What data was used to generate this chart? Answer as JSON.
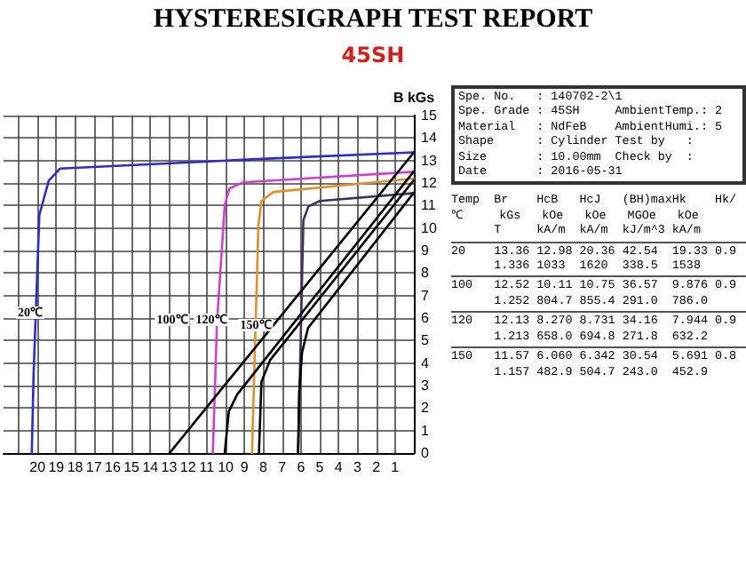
{
  "chart_data": {
    "type": "line",
    "title": "HYSTERESIGRAPH TEST REPORT",
    "subtitle": "45SH",
    "ylabel": "B kGs",
    "xlim": [
      21.8,
      0
    ],
    "xticks": [
      1,
      2,
      3,
      4,
      5,
      6,
      7,
      8,
      9,
      10,
      11,
      12,
      13,
      14,
      15,
      16,
      17,
      18,
      19,
      20,
      {
        "value": 21,
        "label": null
      }
    ],
    "ylim": [
      0,
      15
    ],
    "yticks": [
      0,
      1,
      2,
      3,
      4,
      5,
      6,
      7,
      8,
      9,
      10,
      11,
      12,
      13,
      14,
      15
    ],
    "grid": true,
    "marker": "none",
    "line_style": "solid",
    "series": [
      {
        "color": "#2c2cc8",
        "x": [
          0,
          8.1,
          18.8,
          19.4,
          19.9,
          20.2,
          20.3
        ],
        "values": [
          13.36,
          13.07,
          12.64,
          12.1,
          10.57,
          3.6,
          0
        ]
      },
      {
        "color": "#d040d0",
        "x": [
          0,
          9.06,
          9.8,
          10.05,
          10.46,
          10.68
        ],
        "values": [
          12.5,
          12.03,
          11.76,
          11.0,
          5.77,
          0
        ]
      },
      {
        "color": "#e0902c",
        "x": [
          0,
          7.47,
          8.1,
          8.26,
          8.6
        ],
        "values": [
          12.2,
          11.6,
          11.2,
          10.1,
          0
        ]
      },
      {
        "color": "#403060",
        "x": [
          0,
          5,
          5.6,
          5.87,
          6.15
        ],
        "values": [
          11.55,
          11.2,
          10.96,
          10.35,
          0
        ]
      },
      {
        "color": "#000000",
        "x": [
          0,
          12.98
        ],
        "values": [
          13.36,
          0
        ]
      },
      {
        "color": "#000000",
        "x": [
          0,
          9.39,
          9.83,
          10.05
        ],
        "values": [
          12.52,
          2.6,
          1.85,
          0
        ]
      },
      {
        "color": "#000000",
        "x": [
          0,
          7.63,
          8.1,
          8.23
        ],
        "values": [
          12.13,
          4.14,
          3.16,
          0
        ]
      },
      {
        "color": "#000000",
        "x": [
          0,
          5.62,
          5.94,
          6.09,
          6.15
        ],
        "values": [
          11.57,
          5.56,
          4.47,
          2.72,
          0
        ]
      }
    ],
    "annotations": [
      "20℃",
      "100℃",
      "120℃",
      "150℃",
      "Spe. No.   : 140702-2\\1",
      "Spe. Grade : 45SH     AmbientTemp.: 2",
      "Material   : NdFeB    AmbientHumi.: 5",
      "Shape      : Cylinder Test by   :",
      "Size       : 10.00mm  Check by  :",
      "Date       : 2016-05-31",
      "Temp  Br    HcB   HcJ   (BH)maxHk    Hk/",
      "℃     kGs   kOe   kOe   MGOe   kOe",
      "      T     kA/m  kA/m  kJ/m^3 kA/m",
      "20    13.36 12.98 20.36 42.54  19.33 0.9",
      "      1.336 1033  1620  338.5  1538",
      "100   12.52 10.11 10.75 36.57  9.876 0.9",
      "      1.252 804.7 855.4 291.0  786.0",
      "120   12.13 8.270 8.731 34.16  7.944 0.9",
      "      1.213 658.0 694.8 271.8  632.2",
      "150   11.57 6.060 6.342 30.54  5.691 0.8",
      "      1.157 482.9 504.7 243.0  452.9"
    ]
  }
}
